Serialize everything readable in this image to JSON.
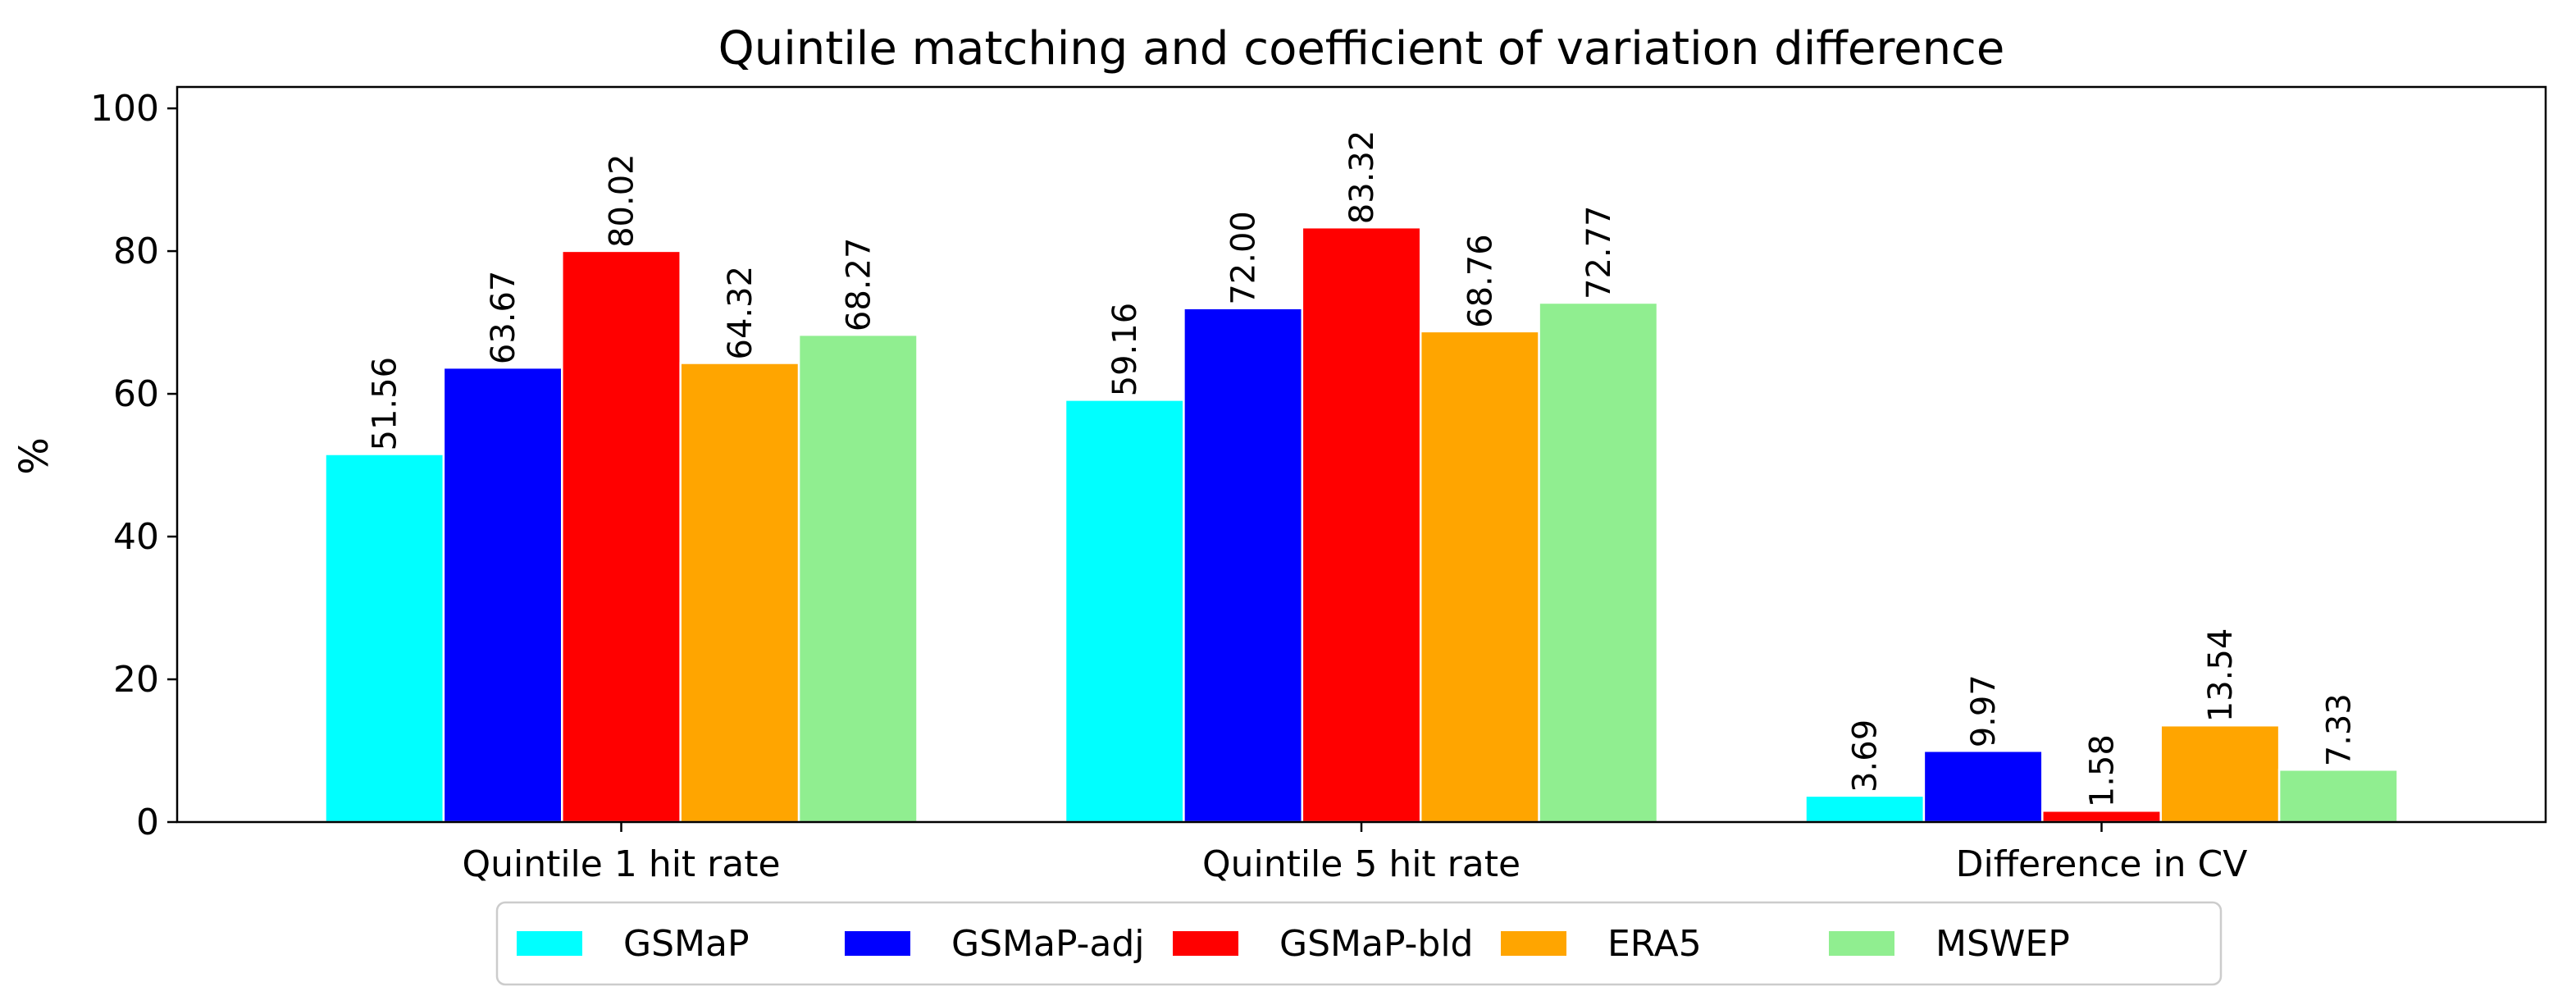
{
  "chart_data": {
    "type": "bar",
    "title": "Quintile matching and coefficient of variation difference",
    "xlabel": "",
    "ylabel": "%",
    "ylim": [
      0,
      103
    ],
    "yticks": [
      0,
      20,
      40,
      60,
      80,
      100
    ],
    "categories": [
      "Quintile 1 hit rate",
      "Quintile 5 hit rate",
      "Difference in CV"
    ],
    "series": [
      {
        "name": "GSMaP",
        "color": "#00FFFF",
        "values": [
          51.56,
          59.16,
          3.69
        ],
        "labels": [
          "51.56",
          "59.16",
          "3.69"
        ]
      },
      {
        "name": "GSMaP-adj",
        "color": "#0000FF",
        "values": [
          63.67,
          72.0,
          9.97
        ],
        "labels": [
          "63.67",
          "72.00",
          "9.97"
        ]
      },
      {
        "name": "GSMaP-bld",
        "color": "#FF0000",
        "values": [
          80.02,
          83.32,
          1.58
        ],
        "labels": [
          "80.02",
          "83.32",
          "1.58"
        ]
      },
      {
        "name": "ERA5",
        "color": "#FFA500",
        "values": [
          64.32,
          68.76,
          13.54
        ],
        "labels": [
          "64.32",
          "68.76",
          "13.54"
        ]
      },
      {
        "name": "MSWEP",
        "color": "#90EE90",
        "values": [
          68.27,
          72.77,
          7.33
        ],
        "labels": [
          "68.27",
          "72.77",
          "7.33"
        ]
      }
    ],
    "legend_position": "bottom-center",
    "grid": false
  }
}
